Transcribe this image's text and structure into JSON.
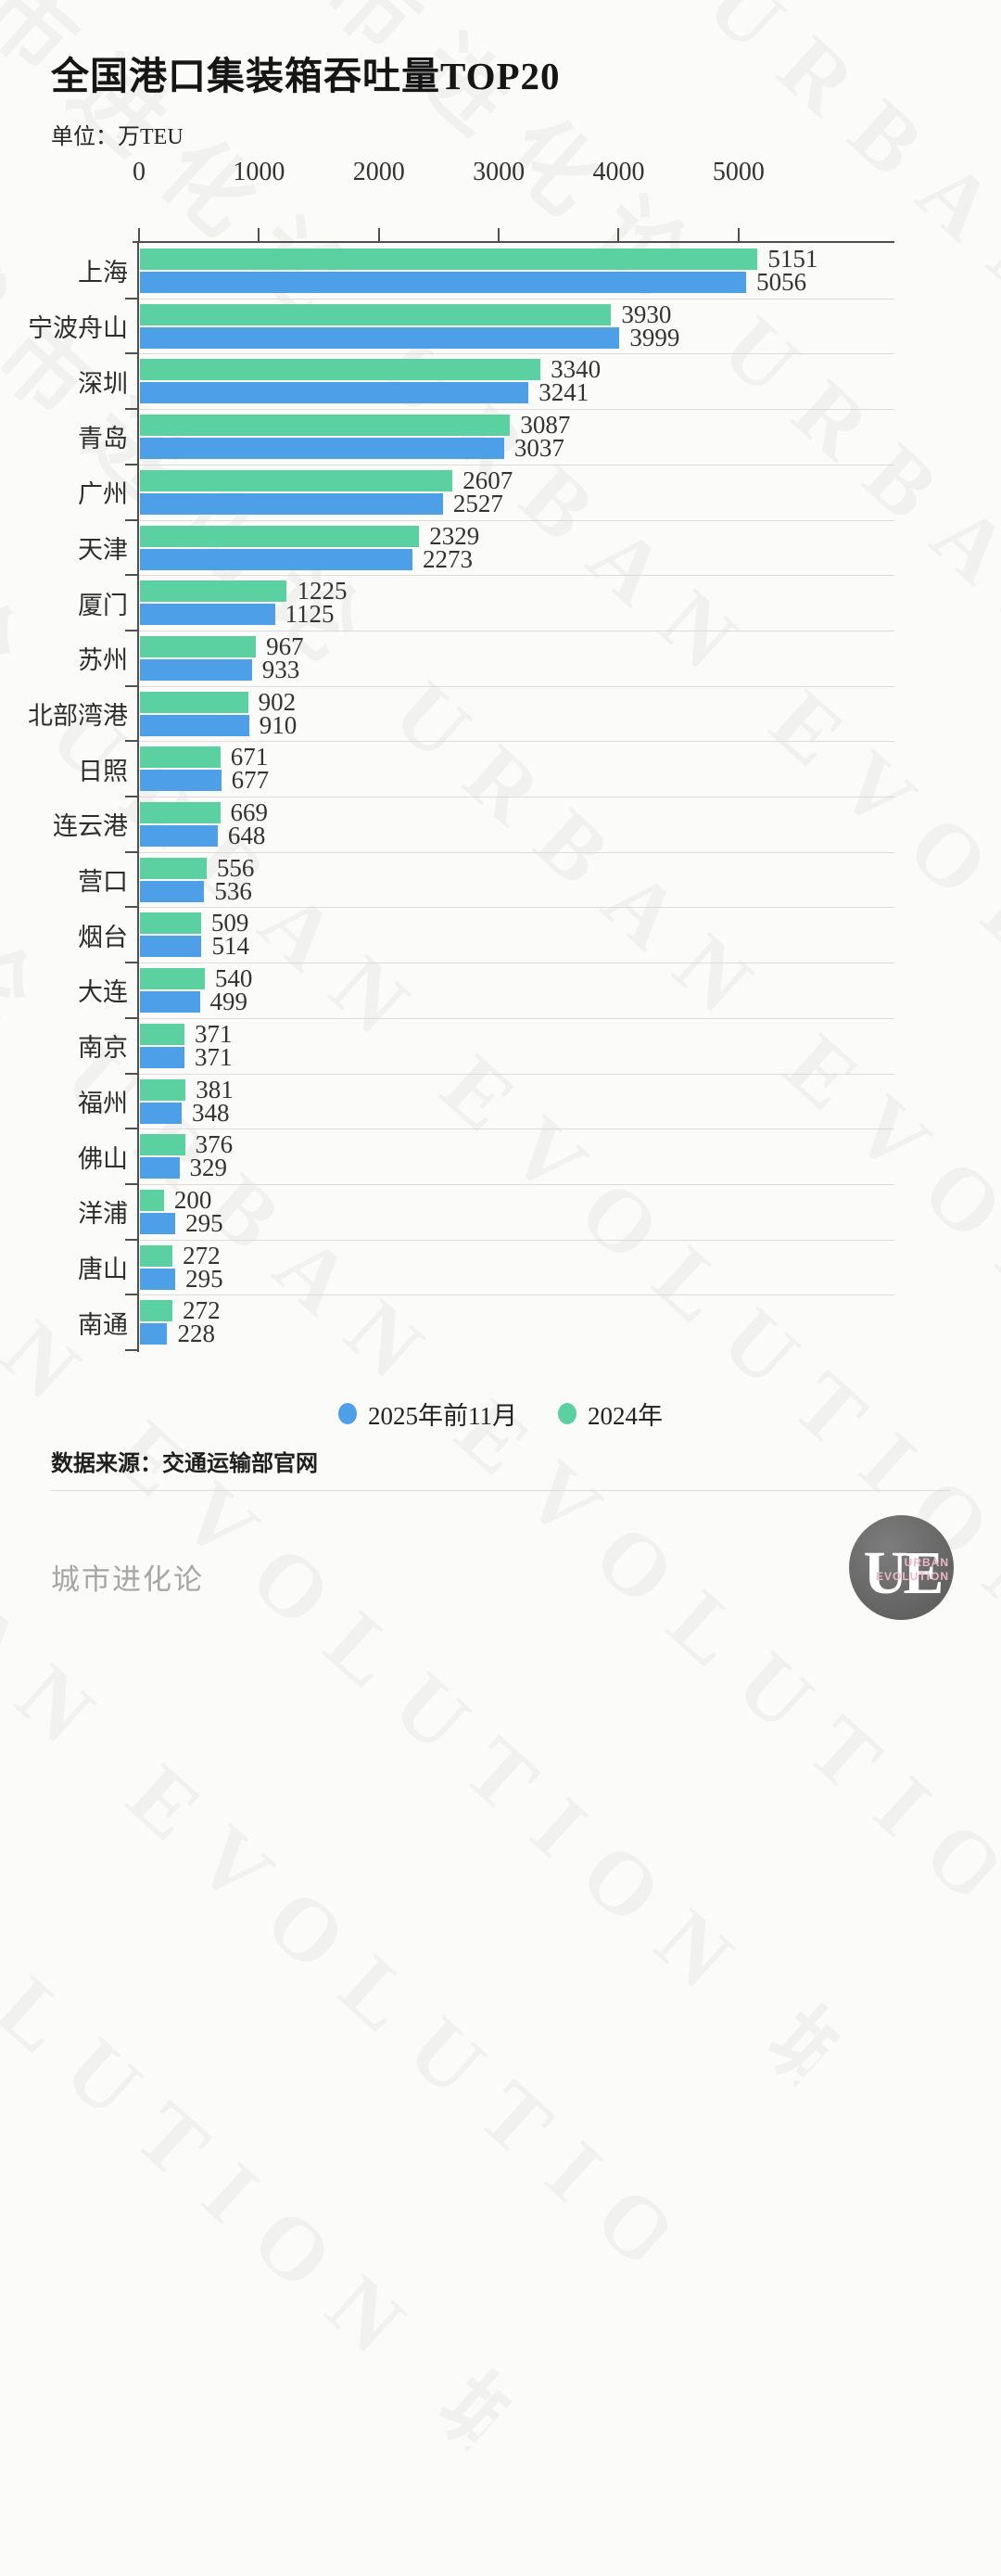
{
  "title": "全国港口集装箱吞吐量TOP20",
  "unit_label": "单位：万TEU",
  "source": "数据来源：交通运输部官网",
  "footer": {
    "brand": "城市进化论",
    "logo_monogram": "UE",
    "logo_line1": "URBAN",
    "logo_line2": "EVOLUTION"
  },
  "watermark": {
    "cjk": "城市进化论",
    "latin": "URBAN EVOLUTION"
  },
  "colors": {
    "blue": "#4d9fe8",
    "green": "#5bd0a0",
    "axis": "#4f4f4f",
    "gridline": "#dcdcdc"
  },
  "legend": [
    {
      "label": "2025年前11月",
      "color": "#4d9fe8"
    },
    {
      "label": "2024年",
      "color": "#5bd0a0"
    }
  ],
  "chart_data": {
    "type": "bar",
    "orientation": "horizontal",
    "title": "全国港口集装箱吞吐量TOP20",
    "unit": "万TEU",
    "xlabel": "",
    "ylabel": "",
    "x_ticks": [
      0,
      1000,
      2000,
      3000,
      4000,
      5000
    ],
    "x_max": 6300,
    "grid": "row-separators",
    "legend_position": "bottom-center",
    "categories": [
      "上海",
      "宁波舟山",
      "深圳",
      "青岛",
      "广州",
      "天津",
      "厦门",
      "苏州",
      "北部湾港",
      "日照",
      "连云港",
      "营口",
      "烟台",
      "大连",
      "南京",
      "福州",
      "佛山",
      "洋浦",
      "唐山",
      "南通"
    ],
    "series": [
      {
        "name": "2024年",
        "color": "#5bd0a0",
        "values": [
          5151,
          3930,
          3340,
          3087,
          2607,
          2329,
          1225,
          967,
          902,
          671,
          669,
          556,
          509,
          540,
          371,
          381,
          376,
          200,
          272,
          272
        ]
      },
      {
        "name": "2025年前11月",
        "color": "#4d9fe8",
        "values": [
          5056,
          3999,
          3241,
          3037,
          2527,
          2273,
          1125,
          933,
          910,
          677,
          648,
          536,
          514,
          499,
          371,
          348,
          329,
          295,
          295,
          228
        ]
      }
    ]
  }
}
